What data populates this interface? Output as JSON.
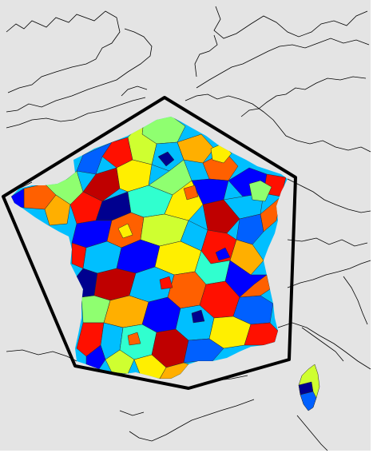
{
  "map": {
    "background_color": "#e4e4e4",
    "border_line_color": "#000000",
    "hull_color": "#000000",
    "region_outline_color": "#2a2a2a",
    "palette": [
      "#00008f",
      "#0000ff",
      "#0060ff",
      "#00bfff",
      "#30ffcf",
      "#8fff70",
      "#cfff30",
      "#ffef00",
      "#ffaf00",
      "#ff6000",
      "#ff1000",
      "#bf0000",
      "#800000"
    ],
    "contains_text": false
  }
}
